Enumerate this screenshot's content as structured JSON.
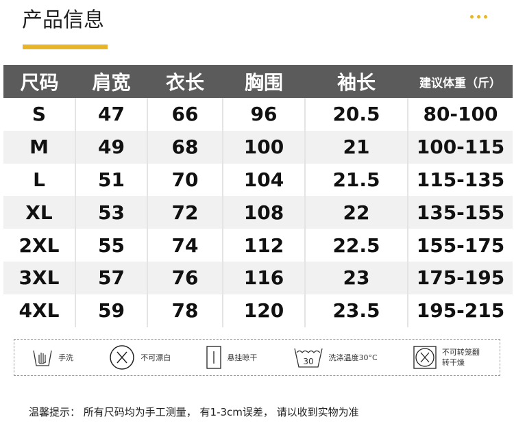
{
  "header": {
    "title": "产品信息",
    "accent_color": "#e8b52a",
    "menu_icon": "more-dots-icon"
  },
  "table": {
    "header_bg": "#5b5b5b",
    "columns": [
      "尺码",
      "肩宽",
      "衣长",
      "胸围",
      "袖长",
      "建议体重（斤）"
    ],
    "rows": [
      [
        "S",
        "47",
        "66",
        "96",
        "20.5",
        "80-100"
      ],
      [
        "M",
        "49",
        "68",
        "100",
        "21",
        "100-115"
      ],
      [
        "L",
        "51",
        "70",
        "104",
        "21.5",
        "115-135"
      ],
      [
        "XL",
        "53",
        "72",
        "108",
        "22",
        "135-155"
      ],
      [
        "2XL",
        "55",
        "74",
        "112",
        "22.5",
        "155-175"
      ],
      [
        "3XL",
        "57",
        "76",
        "116",
        "23",
        "175-195"
      ],
      [
        "4XL",
        "59",
        "78",
        "120",
        "23.5",
        "195-215"
      ]
    ]
  },
  "care": [
    {
      "icon": "hand-wash-icon",
      "label": "手洗"
    },
    {
      "icon": "no-bleach-icon",
      "label": "不可漂白"
    },
    {
      "icon": "hang-dry-icon",
      "label": "悬挂晾干"
    },
    {
      "icon": "wash-30-icon",
      "label": "洗涤温度30°C",
      "temp": "30"
    },
    {
      "icon": "no-tumble-dry-icon",
      "label": "不可转笼翻转干燥"
    }
  ],
  "note": "温馨提示：  所有尺码均为手工测量，  有1-3cm误差，  请以收到实物为准"
}
